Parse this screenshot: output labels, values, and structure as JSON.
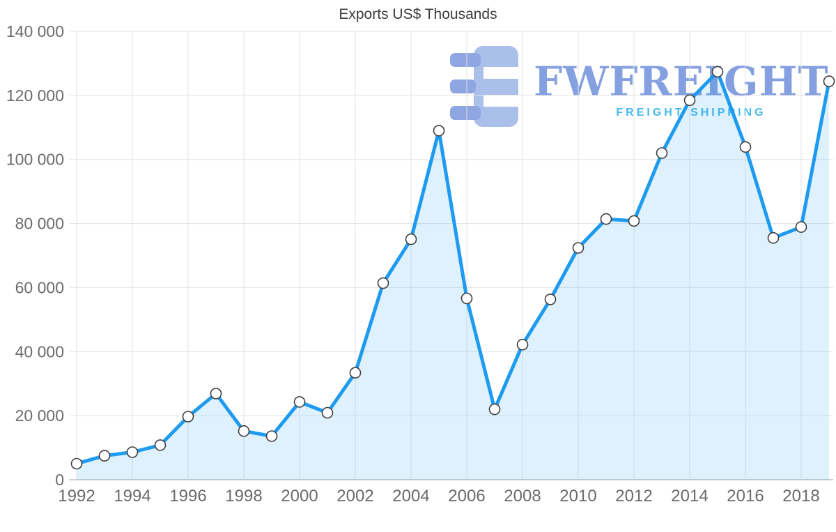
{
  "watermark": {
    "brand": "FWFREIGHT",
    "tagline": "FREIGHT SHIPPING",
    "brand_color": "#5b7cd6",
    "tagline_color": "#2ab2e9"
  },
  "chart_data": {
    "type": "area",
    "title": "Exports US$ Thousands",
    "xlabel": "",
    "ylabel": "",
    "series_name": "Exports US$ Thousands",
    "x": [
      1992,
      1993,
      1994,
      1995,
      1996,
      1997,
      1998,
      1999,
      2000,
      2001,
      2002,
      2003,
      2004,
      2005,
      2006,
      2007,
      2008,
      2009,
      2010,
      2011,
      2012,
      2013,
      2014,
      2015,
      2016,
      2017,
      2018,
      2019
    ],
    "values": [
      5000,
      7500,
      8600,
      10800,
      19700,
      26900,
      15200,
      13600,
      24300,
      20900,
      33400,
      61400,
      75100,
      109000,
      56600,
      22000,
      42200,
      56300,
      72400,
      81400,
      80800,
      102000,
      118500,
      127400,
      103900,
      75500,
      78900,
      124400
    ],
    "ylim": [
      0,
      140000
    ],
    "yticks": [
      0,
      20000,
      40000,
      60000,
      80000,
      100000,
      120000,
      140000
    ],
    "ytick_labels": [
      "0",
      "20 000",
      "40 000",
      "60 000",
      "80 000",
      "100 000",
      "120 000",
      "140 000"
    ],
    "xticks": [
      1992,
      1994,
      1996,
      1998,
      2000,
      2002,
      2004,
      2006,
      2008,
      2010,
      2012,
      2014,
      2016,
      2018
    ],
    "xtick_labels": [
      "1992",
      "1994",
      "1996",
      "1998",
      "2000",
      "2002",
      "2004",
      "2006",
      "2008",
      "2010",
      "2012",
      "2014",
      "2016",
      "2018"
    ],
    "grid": true,
    "legend": "none",
    "line_color": "#1e9bf0",
    "area_fill": "rgba(30,155,240,0.14)",
    "marker_fill": "#ffffff",
    "marker_stroke": "#3f3f3f",
    "grid_color": "#e3e3e3",
    "axis_color": "#bdbdbd",
    "tick_label_color": "#6b6b6b"
  }
}
